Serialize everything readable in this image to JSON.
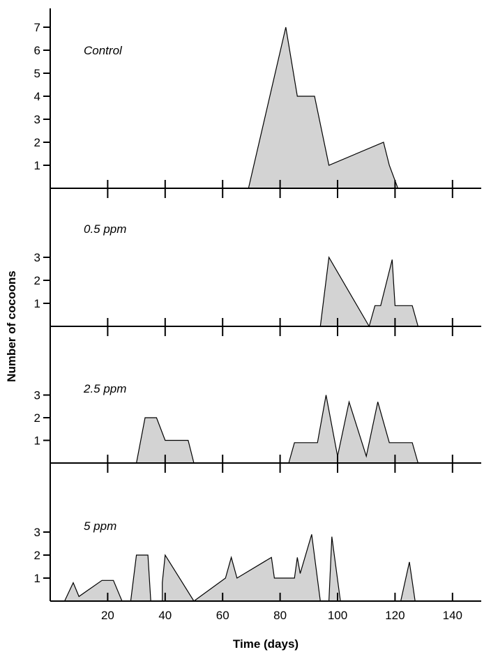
{
  "chart_data": {
    "type": "area",
    "xlabel": "Time (days)",
    "ylabel": "Number of cocoons",
    "xlim": [
      0,
      150
    ],
    "xticks": [
      20,
      40,
      60,
      80,
      100,
      120,
      140
    ],
    "colors": {
      "fill": "#d3d3d3",
      "stroke": "#000000"
    },
    "panels": [
      {
        "label": "Control",
        "ylim": [
          0,
          7
        ],
        "yticks": [
          "1",
          "2",
          "3",
          "4",
          "5",
          "6",
          "7"
        ],
        "values": [
          [
            69,
            0
          ],
          [
            82,
            7
          ],
          [
            86,
            4
          ],
          [
            92,
            4
          ],
          [
            97,
            1
          ],
          [
            116,
            2
          ],
          [
            118,
            1
          ],
          [
            121,
            0
          ]
        ]
      },
      {
        "label": "0.5 ppm",
        "ylim": [
          0,
          3
        ],
        "yticks": [
          "1",
          "2",
          "3"
        ],
        "values": [
          [
            94,
            0
          ],
          [
            97,
            3
          ],
          [
            111,
            0
          ],
          [
            113,
            0.9
          ],
          [
            115,
            0.9
          ],
          [
            119,
            2.9
          ],
          [
            120,
            0.9
          ],
          [
            126,
            0.9
          ],
          [
            128,
            0
          ]
        ]
      },
      {
        "label": "2.5 ppm",
        "ylim": [
          0,
          3
        ],
        "yticks": [
          "1",
          "2",
          "3"
        ],
        "values": [
          [
            30,
            0
          ],
          [
            33,
            2
          ],
          [
            37,
            2
          ],
          [
            40,
            1
          ],
          [
            48,
            1
          ],
          [
            50,
            0
          ],
          [
            null,
            null
          ],
          [
            83,
            0
          ],
          [
            85,
            0.9
          ],
          [
            93,
            0.9
          ],
          [
            96,
            3
          ],
          [
            100,
            0.3
          ],
          [
            104,
            2.7
          ],
          [
            110,
            0.3
          ],
          [
            114,
            2.7
          ],
          [
            118,
            0.9
          ],
          [
            126,
            0.9
          ],
          [
            128,
            0
          ]
        ]
      },
      {
        "label": "5 ppm",
        "ylim": [
          0,
          3
        ],
        "yticks": [
          "1",
          "2",
          "3"
        ],
        "values": [
          [
            5,
            0
          ],
          [
            8,
            0.8
          ],
          [
            10,
            0.2
          ],
          [
            18,
            0.9
          ],
          [
            22,
            0.9
          ],
          [
            25,
            0
          ],
          [
            null,
            null
          ],
          [
            28,
            0
          ],
          [
            30,
            2
          ],
          [
            34,
            2
          ],
          [
            35,
            0
          ],
          [
            null,
            null
          ],
          [
            39,
            0
          ],
          [
            39,
            0.8
          ],
          [
            40,
            2
          ],
          [
            50,
            0
          ],
          [
            61,
            1
          ],
          [
            63,
            1.9
          ],
          [
            65,
            1
          ],
          [
            77,
            1.9
          ],
          [
            78,
            1
          ],
          [
            85,
            1
          ],
          [
            86,
            1.9
          ],
          [
            87,
            1.2
          ],
          [
            91,
            2.9
          ],
          [
            94,
            0
          ],
          [
            null,
            null
          ],
          [
            97,
            0
          ],
          [
            98,
            2.8
          ],
          [
            101,
            0
          ],
          [
            null,
            null
          ],
          [
            122,
            0
          ],
          [
            125,
            1.7
          ],
          [
            127,
            0
          ]
        ]
      }
    ]
  }
}
